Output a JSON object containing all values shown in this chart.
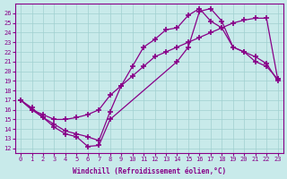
{
  "xlabel": "Windchill (Refroidissement éolien,°C)",
  "ylabel": "",
  "xlim": [
    -0.5,
    23.5
  ],
  "ylim": [
    11.5,
    27.0
  ],
  "xticks": [
    0,
    1,
    2,
    3,
    4,
    5,
    6,
    7,
    8,
    9,
    10,
    11,
    12,
    13,
    14,
    15,
    16,
    17,
    18,
    19,
    20,
    21,
    22,
    23
  ],
  "yticks": [
    12,
    13,
    14,
    15,
    16,
    17,
    18,
    19,
    20,
    21,
    22,
    23,
    24,
    25,
    26
  ],
  "line_color": "#880088",
  "bg_color": "#c8eaea",
  "grid_color": "#a0d0d0",
  "line1_x": [
    0,
    1,
    2,
    3,
    4,
    5,
    6,
    7,
    8,
    9,
    10,
    11,
    12,
    13,
    14,
    15,
    16,
    17,
    18,
    19,
    20,
    21,
    22,
    23
  ],
  "line1_y": [
    17.0,
    16.0,
    15.5,
    15.0,
    15.0,
    15.2,
    15.5,
    16.0,
    17.5,
    18.5,
    19.5,
    20.5,
    21.5,
    22.0,
    22.5,
    23.0,
    23.5,
    24.0,
    24.5,
    25.0,
    25.3,
    25.5,
    25.5,
    19.2
  ],
  "line2_x": [
    0,
    1,
    2,
    3,
    4,
    5,
    6,
    7,
    8,
    14,
    15,
    16,
    17,
    18,
    19,
    20,
    21,
    22,
    23
  ],
  "line2_y": [
    17.0,
    16.2,
    15.2,
    14.2,
    13.5,
    13.2,
    12.2,
    12.3,
    15.0,
    21.0,
    22.5,
    26.2,
    26.5,
    25.2,
    22.5,
    22.0,
    21.0,
    20.5,
    19.2
  ],
  "line3_x": [
    0,
    1,
    2,
    3,
    4,
    5,
    6,
    7,
    8,
    9,
    10,
    11,
    12,
    13,
    14,
    15,
    16,
    17,
    18,
    19,
    20,
    21,
    22,
    23
  ],
  "line3_y": [
    17.0,
    16.0,
    15.2,
    14.5,
    13.8,
    13.5,
    13.2,
    12.8,
    15.8,
    18.5,
    20.5,
    22.5,
    23.3,
    24.3,
    24.5,
    25.8,
    26.5,
    25.2,
    24.5,
    22.5,
    22.0,
    21.5,
    20.8,
    19.0
  ],
  "marker": "+",
  "markersize": 4,
  "markeredgewidth": 1.2,
  "linewidth": 0.9
}
